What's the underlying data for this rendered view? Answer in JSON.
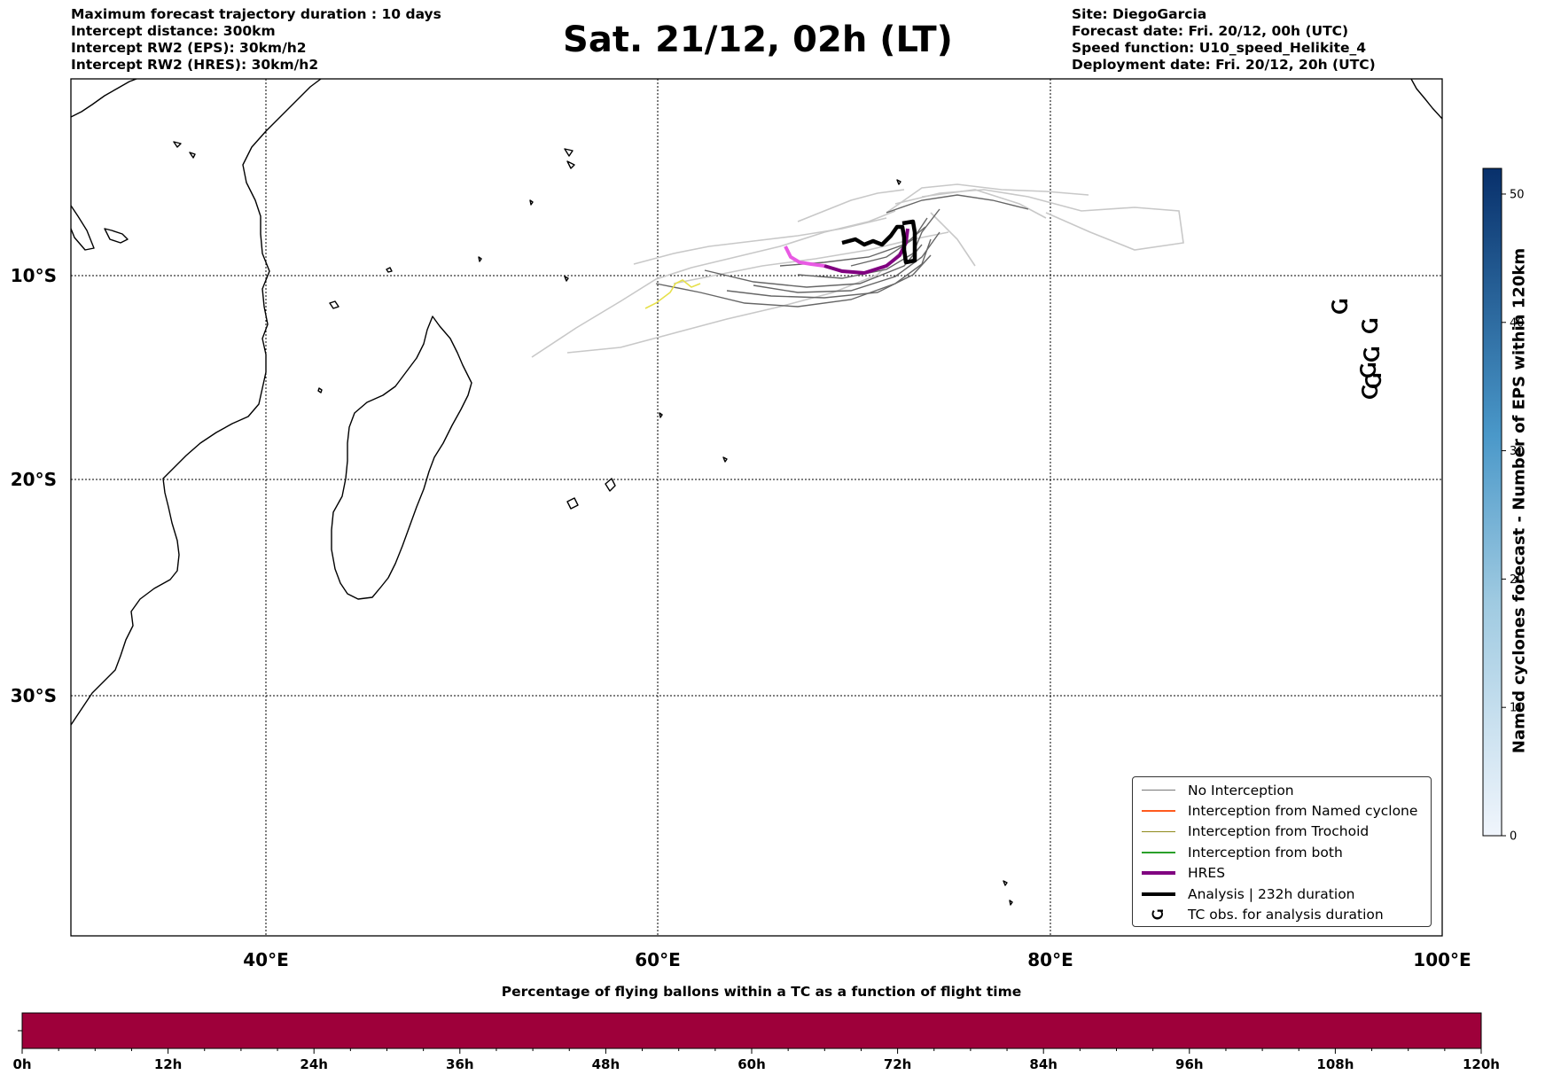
{
  "header": {
    "left_lines": [
      "Maximum forecast trajectory duration : 10 days",
      "Intercept distance: 300km",
      "Intercept RW2 (EPS):  30km/h2",
      "Intercept RW2 (HRES): 30km/h2"
    ],
    "title": "Sat. 21/12, 02h (LT)",
    "right_lines": [
      "Site: DiegoGarcia",
      "Forecast date: Fri. 20/12, 00h (UTC)",
      "Speed function: U10_speed_Helikite_4",
      "Deployment date: Fri. 20/12, 20h (UTC)"
    ]
  },
  "map": {
    "lon_range": [
      30,
      100
    ],
    "lat_range": [
      1,
      -33
    ],
    "lon_ticks": [
      "40°E",
      "60°E",
      "80°E",
      "100°E"
    ],
    "lat_ticks": [
      "10°S",
      "20°S",
      "30°S"
    ],
    "grid": "dotted",
    "tc_symbol": "Ⴚ",
    "tc_symbol_color": "#000000"
  },
  "legend": {
    "items": [
      {
        "label": "No Interception",
        "color": "#777777"
      },
      {
        "label": "Interception from Named cyclone",
        "color": "#ff5a1e"
      },
      {
        "label": "Interception from Trochoid",
        "color": "#8f8a1c"
      },
      {
        "label": "Interception from both",
        "color": "#2aa02a"
      },
      {
        "label": "HRES",
        "color": "#800080"
      },
      {
        "label": "Analysis | 232h duration",
        "color": "#000000"
      },
      {
        "label": "TC obs. for analysis duration",
        "color": "#000000"
      }
    ]
  },
  "colorbar": {
    "label": "Named cyclones forecast - Number of EPS within 120km",
    "ticks": [
      "0",
      "10",
      "20",
      "30",
      "40",
      "50"
    ],
    "max": 52,
    "color_low": "#f0f5fc",
    "color_high": "#08306b"
  },
  "time_bar": {
    "title": "Percentage of flying ballons within a TC as a function of flight time",
    "ticks": [
      "0h",
      "12h",
      "24h",
      "36h",
      "48h",
      "60h",
      "72h",
      "84h",
      "96h",
      "108h",
      "120h"
    ],
    "fill_color": "#9e003a"
  }
}
